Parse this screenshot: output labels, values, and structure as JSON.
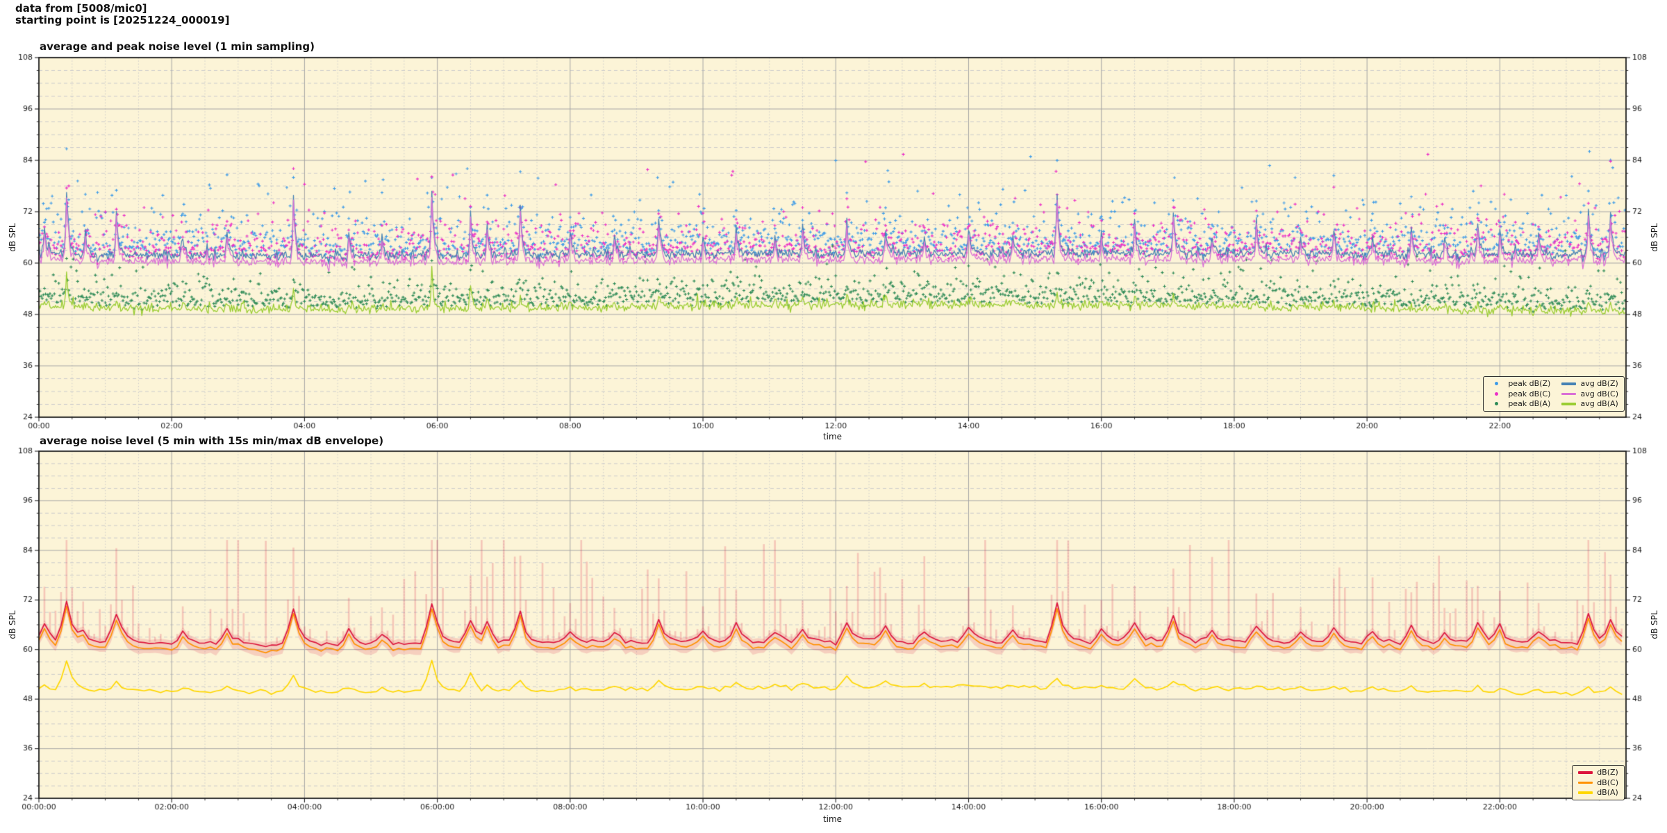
{
  "header": {
    "line1": "data from [5008/mic0]",
    "line2": "starting point is [20251224_000019]"
  },
  "chart_data": [
    {
      "type": "line",
      "title": "average and peak noise level (1 min sampling)",
      "xlabel": "time",
      "ylabel": "dB SPL",
      "ylim": [
        24,
        108
      ],
      "yticks": [
        24,
        36,
        48,
        60,
        72,
        84,
        96,
        108
      ],
      "y_minor_step_db": 3,
      "x_hours_max": 23.9,
      "x_major_step_hours": 2,
      "x_minor_step_hours": 0.5,
      "xtick_labels": [
        "00:00",
        "02:00",
        "04:00",
        "06:00",
        "08:00",
        "10:00",
        "12:00",
        "14:00",
        "16:00",
        "18:00",
        "20:00",
        "22:00"
      ],
      "sampling_minutes": 1,
      "plot_bg": "#FCF4D7",
      "grid": {
        "major_color": "#a5a5a5",
        "minor_color": "#cbcbcb",
        "grid_on": true
      },
      "series": [
        {
          "name": "peak dB(Z)",
          "kind": "scatter",
          "color": "#3D9BE8",
          "above_series": "avg dB(Z)",
          "offset_db": 0.8,
          "excess_tail_db": 3.3,
          "max_db": 86.8
        },
        {
          "name": "peak dB(C)",
          "kind": "scatter",
          "color": "#EB2FC7",
          "above_series": "avg dB(C)",
          "offset_db": 0.8,
          "excess_tail_db": 3.1,
          "max_db": 85.4
        },
        {
          "name": "peak dB(A)",
          "kind": "scatter",
          "color": "#2E8B57",
          "above_series": "avg dB(A)",
          "offset_db": 0.9,
          "excess_tail_db": 2.0,
          "max_db": 64.0
        },
        {
          "name": "avg dB(Z)",
          "kind": "line",
          "color": "#4682B4",
          "baseline_db_every_2h": [
            62.1,
            61.7,
            61.6,
            61.8,
            61.9,
            62.2,
            62.2,
            62.3,
            62.2,
            62.3,
            62.0,
            61.9,
            61.9
          ],
          "noise_sigma_db": 0.55
        },
        {
          "name": "avg dB(C)",
          "kind": "line",
          "color": "#DA70D6",
          "db_below_avg_z": 1.25
        },
        {
          "name": "avg dB(A)",
          "kind": "line",
          "color": "#9ACD32",
          "baseline_db_every_2h": [
            49.9,
            49.3,
            49.1,
            49.3,
            49.6,
            50.0,
            50.2,
            50.3,
            50.1,
            49.9,
            49.4,
            48.9,
            48.6
          ],
          "noise_sigma_db": 0.5
        }
      ],
      "spike_events_minute_zAmp_aAmp": [
        [
          5,
          7,
          1.5
        ],
        [
          25,
          15.5,
          8.5
        ],
        [
          42,
          5,
          1
        ],
        [
          70,
          10.5,
          2.5
        ],
        [
          130,
          4,
          1
        ],
        [
          170,
          6,
          1.5
        ],
        [
          230,
          13,
          5
        ],
        [
          280,
          5.5,
          1.5
        ],
        [
          310,
          4,
          1
        ],
        [
          355,
          15,
          9.5
        ],
        [
          390,
          9,
          6
        ],
        [
          405,
          7.5,
          2
        ],
        [
          435,
          11.5,
          2.5
        ],
        [
          480,
          5,
          1
        ],
        [
          520,
          4,
          1
        ],
        [
          560,
          8,
          2.5
        ],
        [
          600,
          4,
          1
        ],
        [
          630,
          6,
          2
        ],
        [
          665,
          4,
          1
        ],
        [
          690,
          5,
          1.5
        ],
        [
          730,
          7,
          3
        ],
        [
          765,
          6,
          2
        ],
        [
          800,
          4,
          1
        ],
        [
          840,
          6,
          1.5
        ],
        [
          880,
          4,
          1
        ],
        [
          920,
          14,
          3
        ],
        [
          960,
          5,
          1
        ],
        [
          990,
          7,
          2
        ],
        [
          1025,
          9.5,
          2.5
        ],
        [
          1060,
          4,
          1
        ],
        [
          1100,
          6,
          1.5
        ],
        [
          1140,
          4,
          1
        ],
        [
          1170,
          5,
          1.5
        ],
        [
          1205,
          4,
          1
        ],
        [
          1240,
          6,
          1.5
        ],
        [
          1270,
          4,
          1
        ],
        [
          1300,
          7,
          2
        ],
        [
          1320,
          6,
          1.5
        ],
        [
          1355,
          5,
          1.5
        ],
        [
          1400,
          10.5,
          2.5
        ],
        [
          1420,
          9,
          2
        ]
      ],
      "legend": {
        "columns": 2,
        "position": "lower right",
        "entries": [
          {
            "label": "peak dB(Z)",
            "marker": "dot",
            "color": "#3D9BE8"
          },
          {
            "label": "peak dB(C)",
            "marker": "dot",
            "color": "#EB2FC7"
          },
          {
            "label": "peak dB(A)",
            "marker": "dot",
            "color": "#2E8B57"
          },
          {
            "label": "avg dB(Z)",
            "marker": "line",
            "color": "#4682B4"
          },
          {
            "label": "avg dB(C)",
            "marker": "line",
            "color": "#DA70D6"
          },
          {
            "label": "avg dB(A)",
            "marker": "line",
            "color": "#9ACD32"
          }
        ]
      }
    },
    {
      "type": "line",
      "title": "average noise level (5 min with 15s min/max dB envelope)",
      "xlabel": "time",
      "ylabel": "dB SPL",
      "ylim": [
        24,
        108
      ],
      "yticks": [
        24,
        36,
        48,
        60,
        72,
        84,
        96,
        108
      ],
      "y_minor_step_db": 3,
      "x_hours_max": 23.9,
      "x_major_step_hours": 2,
      "x_minor_step_hours": 0.5,
      "xtick_labels": [
        "00:00:00",
        "02:00:00",
        "04:00:00",
        "06:00:00",
        "08:00:00",
        "10:00:00",
        "12:00:00",
        "14:00:00",
        "16:00:00",
        "18:00:00",
        "20:00:00",
        "22:00:00"
      ],
      "sampling_minutes": 5,
      "plot_bg": "#FCF4D7",
      "grid": {
        "major_color": "#a5a5a5",
        "minor_color": "#cbcbcb",
        "grid_on": true
      },
      "series": [
        {
          "name": "dB(Z)",
          "kind": "line",
          "color": "#DC143C",
          "db_below_top_avg_z": 0.35,
          "spike_scale": 0.66,
          "noise_sigma_db": 0.3
        },
        {
          "name": "dB(C)",
          "kind": "line",
          "color": "#FF9100",
          "db_below_db_z": 1.2
        },
        {
          "name": "dB(A)",
          "kind": "line",
          "color": "#FFD700",
          "db_above_top_avg_a": 0.55,
          "spike_scale": 0.8,
          "noise_sigma_db": 0.28
        }
      ],
      "envelope": {
        "for_series": "dB(Z)",
        "color": "#DC143C",
        "band_alpha": 0.16,
        "spike_alpha": 0.2,
        "min_below_db_c": 1.3,
        "max_spike_excess_db": 26,
        "max_db": 86.5
      },
      "legend": {
        "columns": 1,
        "position": "lower right",
        "entries": [
          {
            "label": "dB(Z)",
            "marker": "line",
            "color": "#DC143C"
          },
          {
            "label": "dB(C)",
            "marker": "line",
            "color": "#FF9100"
          },
          {
            "label": "dB(A)",
            "marker": "line",
            "color": "#FFD700"
          }
        ]
      }
    }
  ]
}
